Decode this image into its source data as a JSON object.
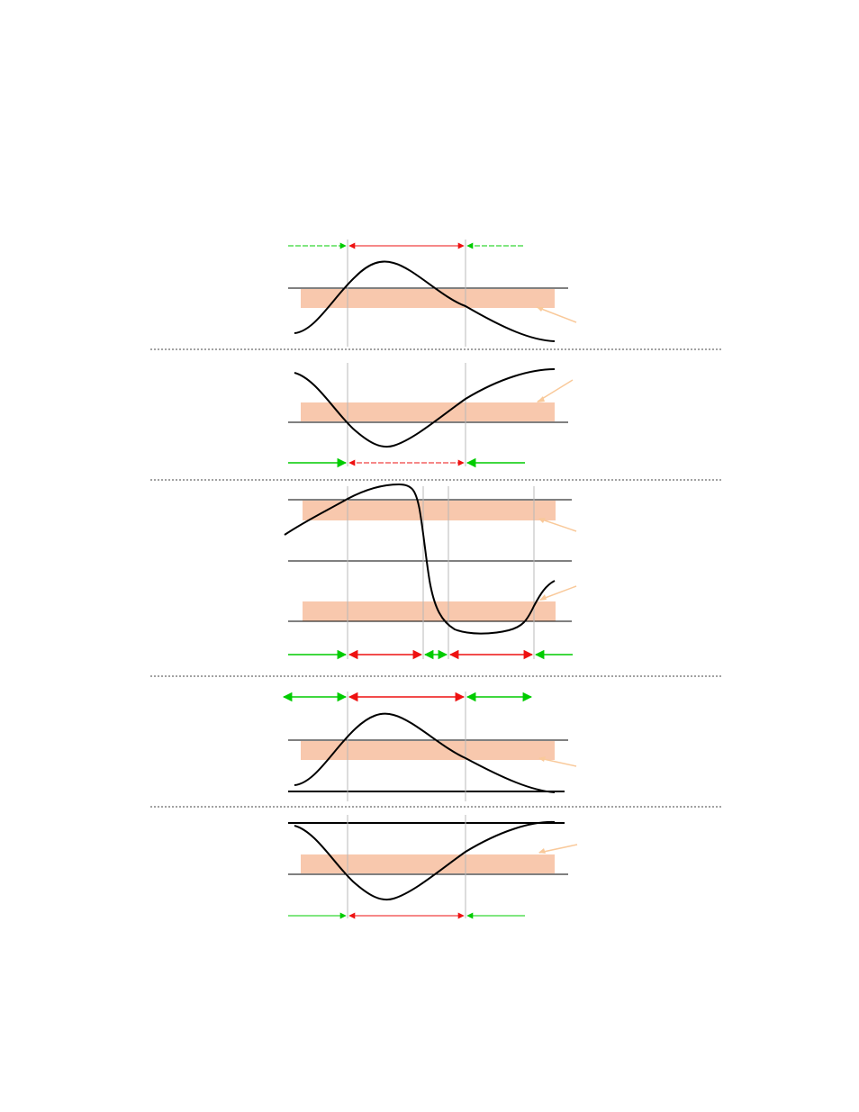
{
  "colors": {
    "curve": "#000000",
    "band": "#f8c8ad",
    "pointer": "#f9c99a",
    "pass_arrow": "#00cc00",
    "fail_arrow": "#ee1111",
    "guide": "#b8b8b8",
    "separator": "#444444"
  },
  "diagram": {
    "panels": [
      {
        "id": "panel-1",
        "shape": "peak",
        "threshold_bands": 1,
        "arrow_segments": [
          "green",
          "red",
          "green"
        ],
        "arrow_position": "top"
      },
      {
        "id": "panel-2",
        "shape": "valley",
        "threshold_bands": 1,
        "arrow_segments": [
          "green",
          "red",
          "green"
        ],
        "arrow_position": "bottom"
      },
      {
        "id": "panel-3",
        "shape": "peak-then-valley",
        "threshold_bands": 2,
        "arrow_segments": [
          "green",
          "red",
          "green",
          "red",
          "green"
        ],
        "arrow_position": "bottom"
      },
      {
        "id": "panel-4",
        "shape": "peak",
        "threshold_bands": 1,
        "arrow_segments": [
          "green",
          "red",
          "green"
        ],
        "arrow_position": "top"
      },
      {
        "id": "panel-5",
        "shape": "valley",
        "threshold_bands": 1,
        "arrow_segments": [
          "green",
          "red",
          "green"
        ],
        "arrow_position": "bottom"
      }
    ]
  }
}
